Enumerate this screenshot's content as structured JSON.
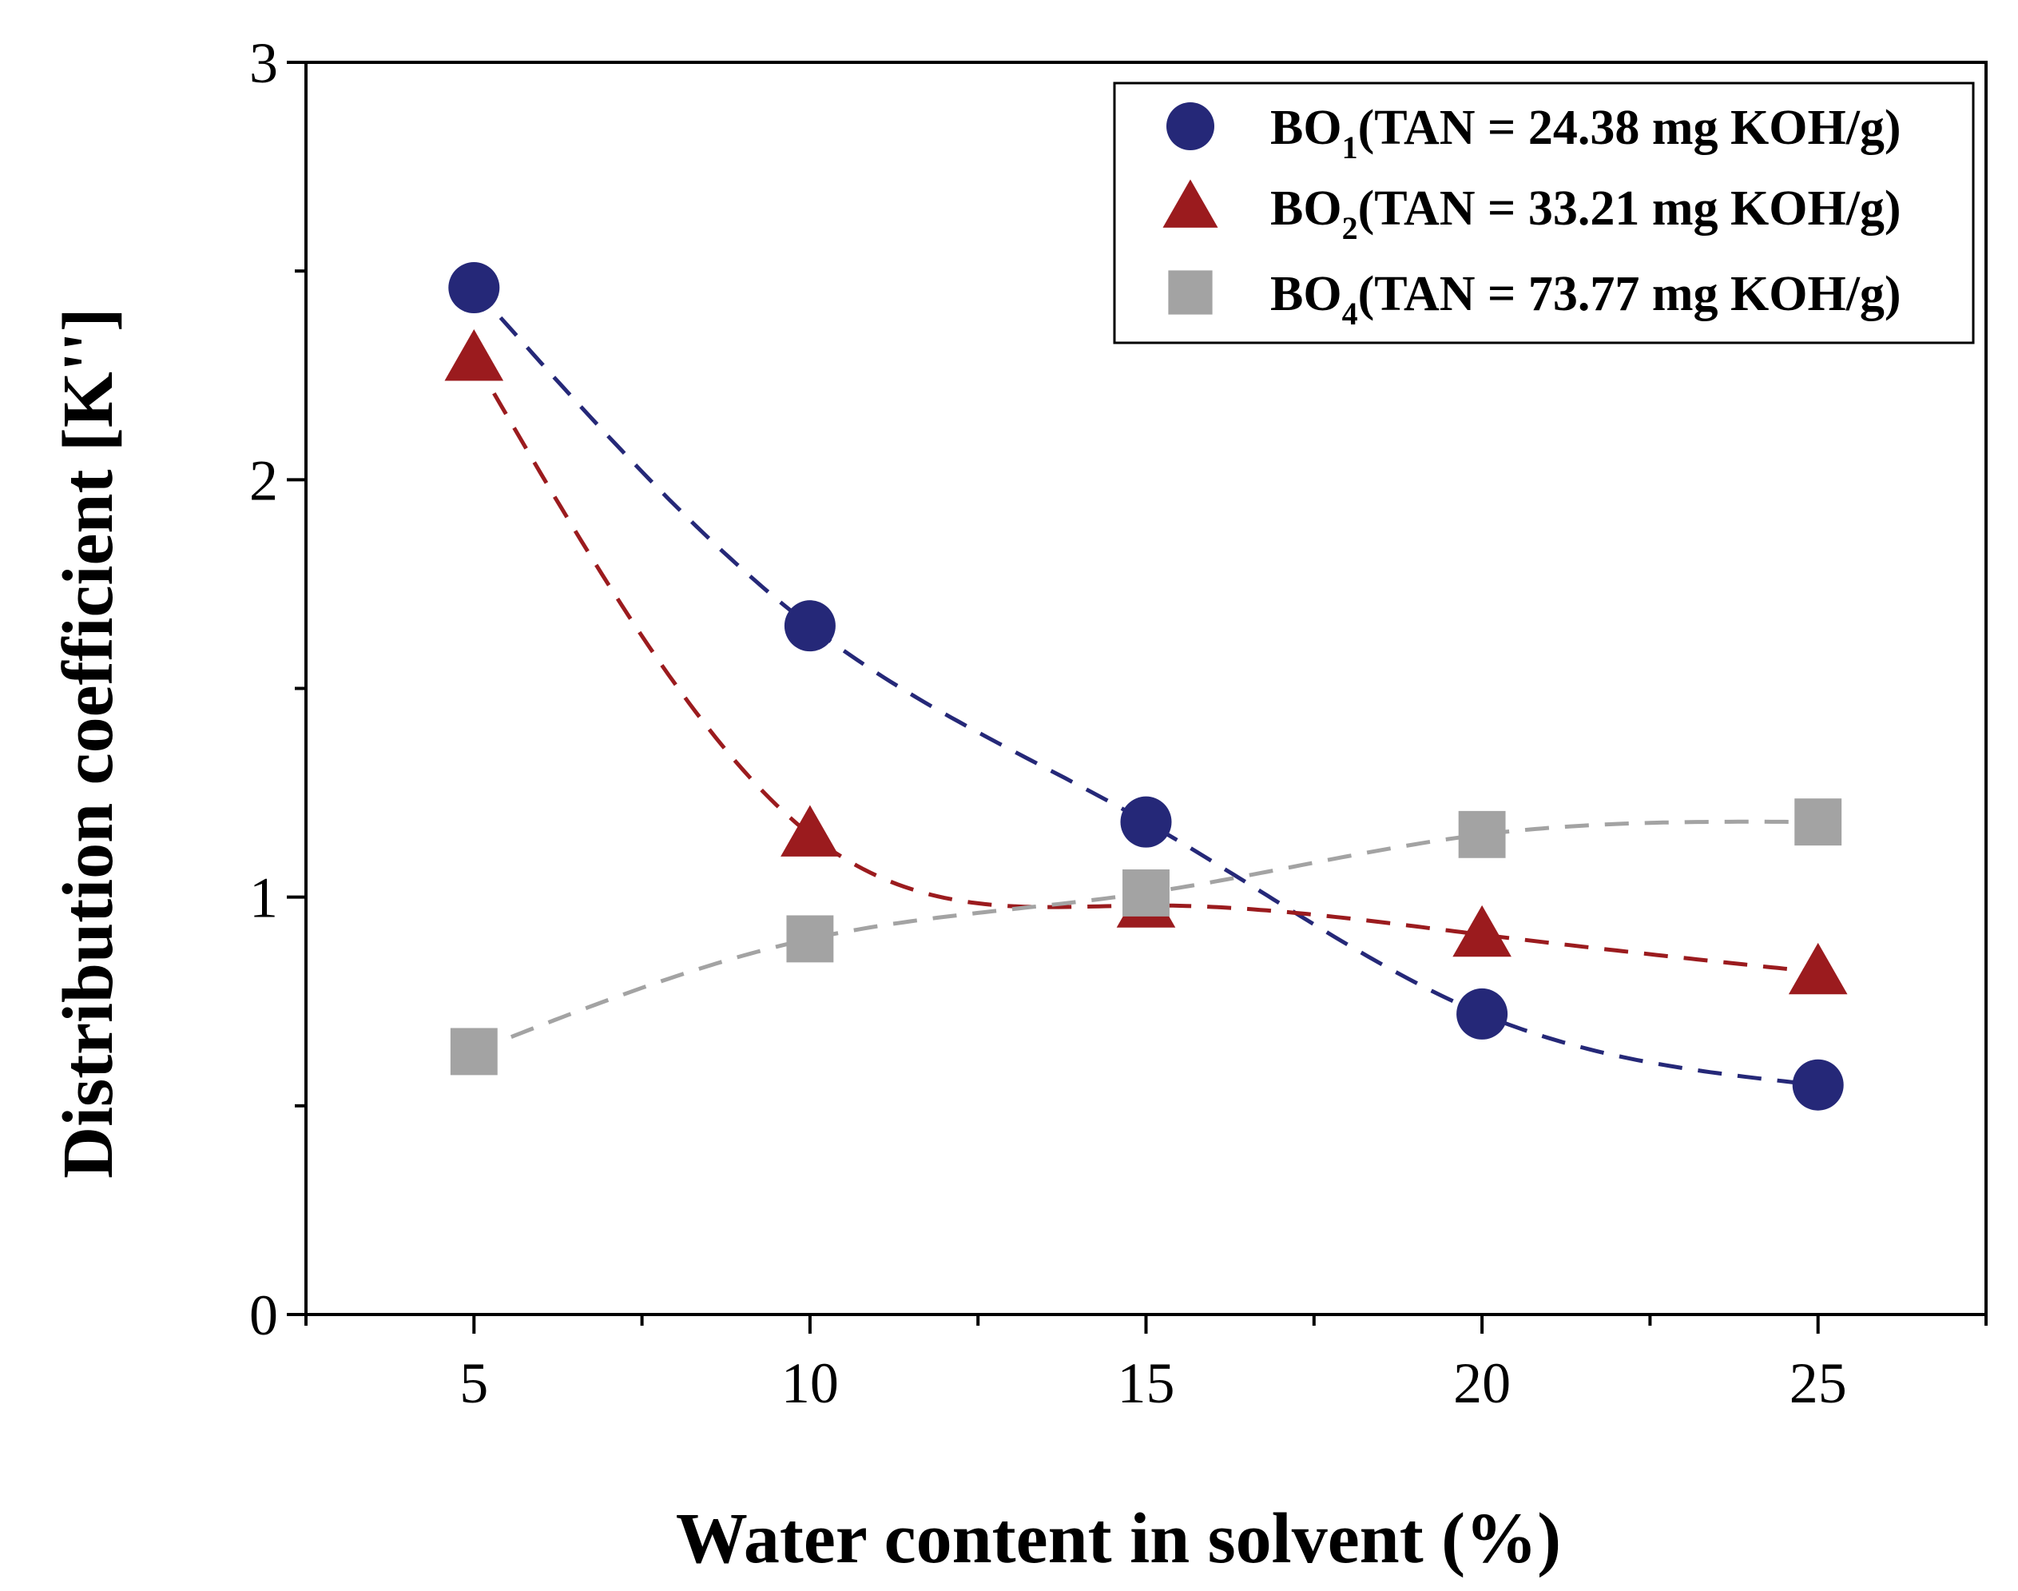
{
  "chart_data": {
    "type": "scatter",
    "title": "",
    "xlabel": "Water content in solvent (%)",
    "ylabel": "Distribution coefficient [K'']",
    "xlim": [
      2.5,
      27.5
    ],
    "ylim": [
      0,
      3
    ],
    "x_ticks": [
      5,
      10,
      15,
      20,
      25
    ],
    "y_ticks": [
      0,
      1,
      2,
      3
    ],
    "x": [
      5,
      10,
      15,
      20,
      25
    ],
    "legend_position": "top-right",
    "series": [
      {
        "id": "bo1",
        "name_main": "BO",
        "name_sub": "1",
        "name_rest": "(TAN = 24.38 mg KOH/g)",
        "marker": "circle",
        "color": "#252878",
        "values": [
          2.46,
          1.65,
          1.18,
          0.72,
          0.55
        ]
      },
      {
        "id": "bo2",
        "name_main": "BO",
        "name_sub": "2",
        "name_rest": "(TAN = 33.21 mg KOH/g)",
        "marker": "triangle",
        "color": "#9b1b1e",
        "values": [
          2.29,
          1.15,
          0.98,
          0.91,
          0.82
        ]
      },
      {
        "id": "bo4",
        "name_main": "BO",
        "name_sub": "4",
        "name_rest": "(TAN = 73.77 mg KOH/g)",
        "marker": "square",
        "color": "#a3a3a3",
        "values": [
          0.63,
          0.9,
          1.01,
          1.15,
          1.18
        ]
      }
    ]
  }
}
